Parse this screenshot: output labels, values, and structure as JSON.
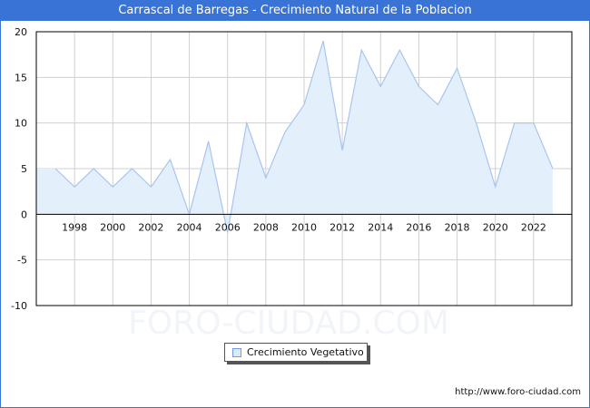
{
  "title": "Carrascal de Barregas - Crecimiento Natural de la Poblacion",
  "watermark": "FORO-CIUDAD.COM",
  "source": "http://www.foro-ciudad.com",
  "legend": {
    "label": "Crecimiento Vegetativo",
    "color": "#a9c4ef"
  },
  "colors": {
    "header": "#3a73d6",
    "line": "#a9c4ef",
    "fill": "#e3f0fc",
    "grid": "#d0d0d0"
  },
  "chart_data": {
    "type": "area",
    "title": "Carrascal de Barregas - Crecimiento Natural de la Poblacion",
    "xlabel": "",
    "ylabel": "",
    "x": [
      1996,
      1997,
      1998,
      1999,
      2000,
      2001,
      2002,
      2003,
      2004,
      2005,
      2006,
      2007,
      2008,
      2009,
      2010,
      2011,
      2012,
      2013,
      2014,
      2015,
      2016,
      2017,
      2018,
      2019,
      2020,
      2021,
      2022,
      2023
    ],
    "series": [
      {
        "name": "Crecimiento Vegetativo",
        "values": [
          5,
          5,
          3,
          5,
          3,
          5,
          3,
          6,
          0,
          8,
          -2,
          10,
          4,
          9,
          12,
          19,
          7,
          18,
          14,
          18,
          14,
          12,
          16,
          10,
          3,
          10,
          10,
          5
        ]
      }
    ],
    "x_tick_labels": [
      "1998",
      "2000",
      "2002",
      "2004",
      "2006",
      "2008",
      "2010",
      "2012",
      "2014",
      "2016",
      "2018",
      "2020",
      "2022"
    ],
    "y_tick_labels": [
      "20",
      "15",
      "10",
      "5",
      "0",
      "-5",
      "-10"
    ],
    "ylim": [
      -10,
      20
    ],
    "xlim": [
      1996,
      2024
    ],
    "grid": true,
    "legend_position": "bottom"
  }
}
